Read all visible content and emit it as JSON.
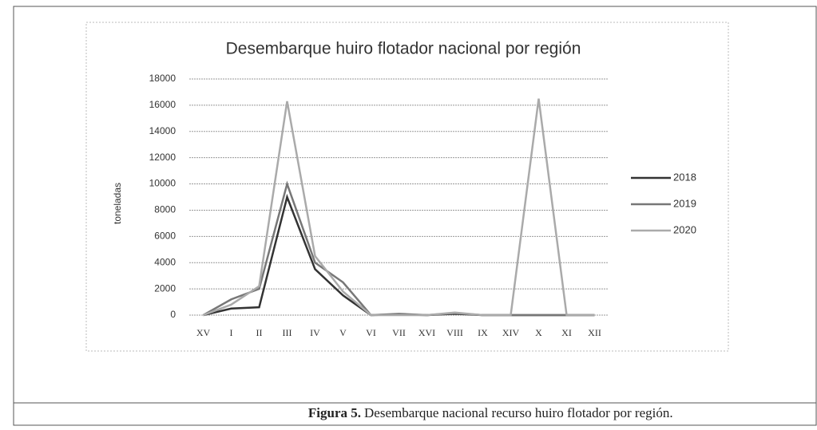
{
  "chart_data": {
    "type": "line",
    "title": "Desembarque huiro flotador nacional por región",
    "ylabel": "toneladas",
    "categories": [
      "XV",
      "I",
      "II",
      "III",
      "IV",
      "V",
      "VI",
      "VII",
      "XVI",
      "VIII",
      "IX",
      "XIV",
      "X",
      "XI",
      "XII"
    ],
    "series": [
      {
        "name": "2018",
        "color": "#333333",
        "values": [
          0,
          500,
          600,
          9000,
          3500,
          1500,
          0,
          50,
          0,
          100,
          0,
          0,
          0,
          0,
          0
        ]
      },
      {
        "name": "2019",
        "color": "#777777",
        "values": [
          0,
          1200,
          2000,
          10000,
          4000,
          2500,
          0,
          100,
          0,
          150,
          0,
          0,
          0,
          0,
          0
        ]
      },
      {
        "name": "2020",
        "color": "#aaaaaa",
        "values": [
          0,
          800,
          2200,
          16300,
          4500,
          1800,
          0,
          0,
          0,
          200,
          0,
          0,
          16500,
          0,
          0
        ]
      }
    ],
    "ylim": [
      0,
      18000
    ],
    "yticks": [
      0,
      2000,
      4000,
      6000,
      8000,
      10000,
      12000,
      14000,
      16000,
      18000
    ],
    "grid": true,
    "legend": "right"
  },
  "caption": {
    "label": "Figura 5.",
    "text": "Desembarque nacional recurso huiro flotador por región."
  }
}
